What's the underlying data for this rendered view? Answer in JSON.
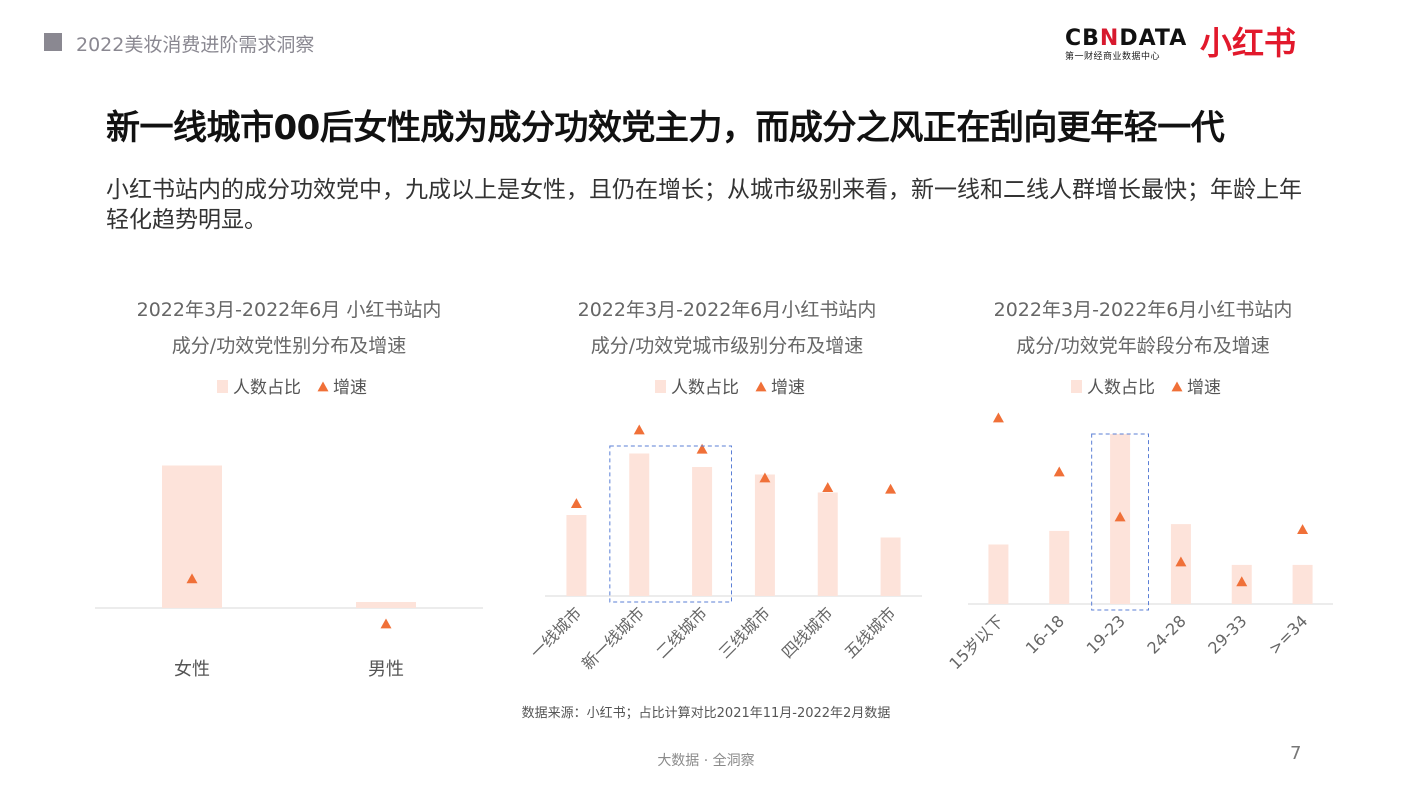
{
  "header": {
    "section_title": "2022美妆消费进阶需求洞察",
    "logo_cbn_main_a": "CB",
    "logo_cbn_main_x": "N",
    "logo_cbn_main_b": "DATA",
    "logo_cbn_sub": "第一财经商业数据中心",
    "logo_xhs": "小红书"
  },
  "headline": "新一线城市00后女性成为成分功效党主力，而成分之风正在刮向更年轻一代",
  "subtitle": "小红书站内的成分功效党中，九成以上是女性，且仍在增长；从城市级别来看，新一线和二线人群增长最快；年龄上年轻化趋势明显。",
  "colors": {
    "bar": "#fde3da",
    "marker": "#f07038",
    "highlight_box": "#5b7fd6",
    "axis": "#d9d9d9"
  },
  "chart_data": [
    {
      "type": "bar",
      "title_line1": "2022年3月-2022年6月 小红书站内",
      "title_line2": "成分/功效党性别分布及增速",
      "legend": [
        "人数占比",
        "增速"
      ],
      "categories": [
        "女性",
        "男性"
      ],
      "series": [
        {
          "name": "人数占比",
          "values": [
            0.95,
            0.04
          ],
          "marker": "bar"
        },
        {
          "name": "增速",
          "values": [
            0.14,
            -0.1
          ],
          "marker": "triangle"
        }
      ],
      "highlight": []
    },
    {
      "type": "bar",
      "title_line1": "2022年3月-2022年6月小红书站内",
      "title_line2": "成分/功效党城市级别分布及增速",
      "legend": [
        "人数占比",
        "增速"
      ],
      "categories": [
        "一线城市",
        "新一线城市",
        "二线城市",
        "三线城市",
        "四线城市",
        "五线城市"
      ],
      "series": [
        {
          "name": "人数占比",
          "values": [
            0.54,
            0.95,
            0.86,
            0.81,
            0.69,
            0.39
          ],
          "marker": "bar"
        },
        {
          "name": "增速",
          "values": [
            0.54,
            1.0,
            0.88,
            0.7,
            0.64,
            0.63
          ],
          "marker": "triangle"
        }
      ],
      "highlight": [
        1,
        2
      ]
    },
    {
      "type": "bar",
      "title_line1": "2022年3月-2022年6月小红书站内",
      "title_line2": "成分/功效党年龄段分布及增速",
      "legend": [
        "人数占比",
        "增速"
      ],
      "categories": [
        "15岁以下",
        "16-18",
        "19-23",
        "24-28",
        "29-33",
        ">=34"
      ],
      "series": [
        {
          "name": "人数占比",
          "values": [
            0.35,
            0.43,
            1.0,
            0.47,
            0.23,
            0.23
          ],
          "marker": "bar"
        },
        {
          "name": "增速",
          "values": [
            1.0,
            0.7,
            0.45,
            0.2,
            0.09,
            0.38
          ],
          "marker": "triangle"
        }
      ],
      "highlight": [
        2
      ]
    }
  ],
  "source_note": "数据来源：小红书；占比计算对比2021年11月-2022年2月数据",
  "footer": "大数据 · 全洞察",
  "page_number": "7"
}
